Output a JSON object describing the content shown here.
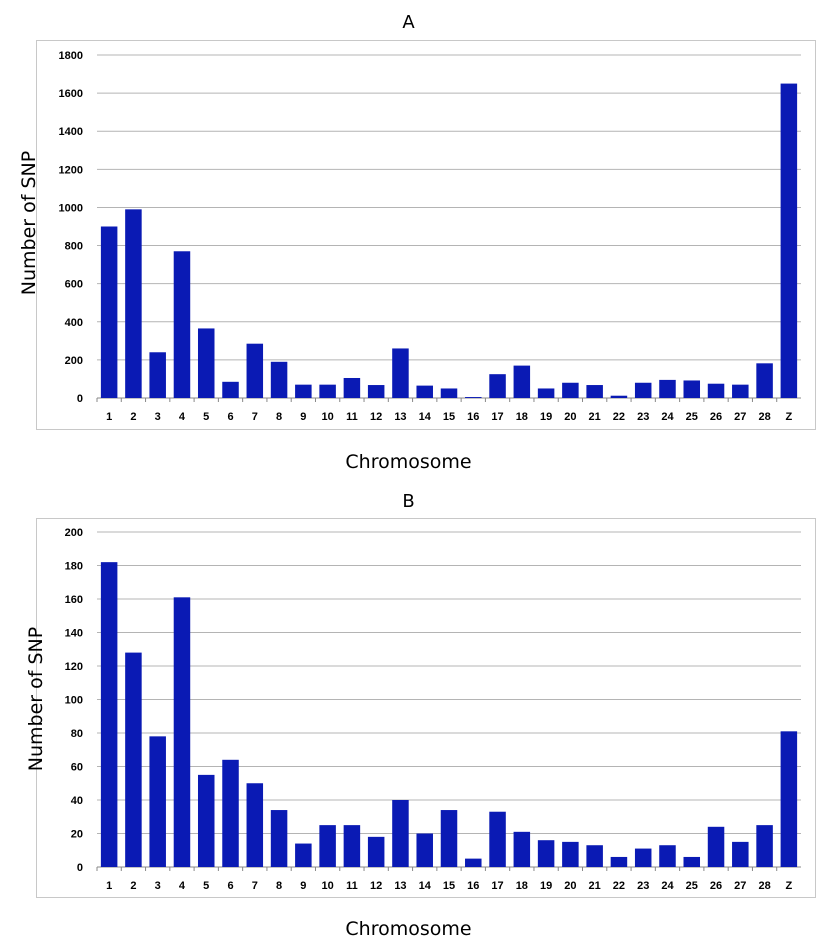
{
  "chart_data": [
    {
      "type": "bar",
      "title": "A",
      "xlabel": "Chromosome",
      "ylabel": "Number of SNP",
      "ylim": [
        0,
        1800
      ],
      "ytick_step": 200,
      "grid": true,
      "bar_color": "#0a1ab4",
      "categories": [
        "1",
        "2",
        "3",
        "4",
        "5",
        "6",
        "7",
        "8",
        "9",
        "10",
        "11",
        "12",
        "13",
        "14",
        "15",
        "16",
        "17",
        "18",
        "19",
        "20",
        "21",
        "22",
        "23",
        "24",
        "25",
        "26",
        "27",
        "28",
        "Z"
      ],
      "values": [
        900,
        990,
        240,
        770,
        365,
        85,
        285,
        190,
        70,
        70,
        105,
        68,
        260,
        65,
        50,
        5,
        125,
        170,
        50,
        80,
        68,
        12,
        80,
        95,
        92,
        75,
        70,
        182,
        1650
      ]
    },
    {
      "type": "bar",
      "title": "B",
      "xlabel": "Chromosome",
      "ylabel": "Number of SNP",
      "ylim": [
        0,
        200
      ],
      "ytick_step": 20,
      "grid": true,
      "bar_color": "#0a1ab4",
      "categories": [
        "1",
        "2",
        "3",
        "4",
        "5",
        "6",
        "7",
        "8",
        "9",
        "10",
        "11",
        "12",
        "13",
        "14",
        "15",
        "16",
        "17",
        "18",
        "19",
        "20",
        "21",
        "22",
        "23",
        "24",
        "25",
        "26",
        "27",
        "28",
        "Z"
      ],
      "values": [
        182,
        128,
        78,
        161,
        55,
        64,
        50,
        34,
        14,
        25,
        25,
        18,
        40,
        20,
        34,
        5,
        33,
        21,
        16,
        15,
        13,
        6,
        11,
        13,
        6,
        24,
        15,
        25,
        81
      ]
    }
  ]
}
